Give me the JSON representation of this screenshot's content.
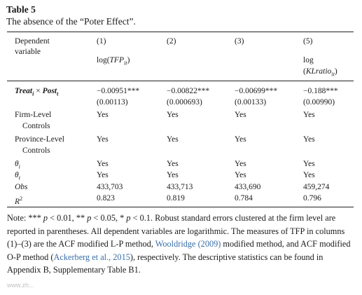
{
  "caption": {
    "label": "Table 5",
    "title": "The absence of the “Poter Effect”."
  },
  "table": {
    "header": {
      "dep_line1": "Dependent",
      "dep_line2": "variable",
      "cols": [
        "(1)",
        "(2)",
        "(3)",
        "(5)"
      ],
      "log_tfp_prefix": "log(",
      "log_tfp_var": "TFP",
      "log_tfp_sub": "it",
      "log_tfp_suffix": ")",
      "log_kl_line1": "log",
      "log_kl_prefix": "(",
      "log_kl_var": "KLratio",
      "log_kl_sub": "it",
      "log_kl_suffix": ")"
    },
    "treat_row": {
      "treat": "Treat",
      "treat_sub": "i",
      "times": " × ",
      "post": "Post",
      "post_sub": "t",
      "coefs": [
        "−0.00951***",
        "−0.00822***",
        "−0.00699***",
        "−0.188***"
      ],
      "ses": [
        "(0.00113)",
        "(0.000693)",
        "(0.00133)",
        "(0.00990)"
      ]
    },
    "firm_row": {
      "line1": "Firm-Level",
      "line2": "Controls",
      "values": [
        "Yes",
        "Yes",
        "Yes",
        "Yes"
      ]
    },
    "prov_row": {
      "line1": "Province-Level",
      "line2": "Controls",
      "values": [
        "Yes",
        "Yes",
        "Yes",
        "Yes"
      ]
    },
    "theta_i_row": {
      "symbol": "θ",
      "sub": "i",
      "values": [
        "Yes",
        "Yes",
        "Yes",
        "Yes"
      ]
    },
    "theta_t_row": {
      "symbol": "θ",
      "sub": "t",
      "values": [
        "Yes",
        "Yes",
        "Yes",
        "Yes"
      ]
    },
    "obs_row": {
      "label": "Obs",
      "values": [
        "433,703",
        "433,713",
        "433,690",
        "459,274"
      ]
    },
    "r2_row": {
      "label": "R",
      "sup": "2",
      "values": [
        "0.823",
        "0.819",
        "0.784",
        "0.796"
      ]
    }
  },
  "note": {
    "p1": "Note: *** ",
    "p2": " < 0.01, ** ",
    "p3": " < 0.05, * ",
    "p4": " < 0.1. Robust standard errors clustered at the firm level are reported in parentheses. All dependent variables are logarithmic. The measures of TFP in columns (1)–(3) are the ACF modified L-P method, ",
    "p_symbol": "p",
    "link1": "Wooldridge (2009)",
    "p5": " modified method, and ACF modified O-P method (",
    "link2": "Ackerberg et al., 2015",
    "p6": "), respectively. The descriptive statistics can be found in Appendix B, Supplementary Table B1."
  },
  "watermark": "www.zh..."
}
